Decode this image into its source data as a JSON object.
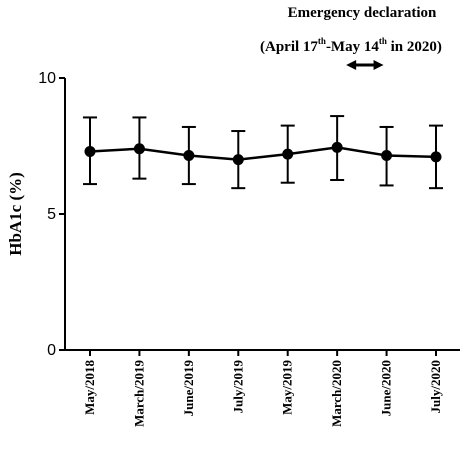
{
  "annotation": {
    "title": "Emergency declaration",
    "period_start": "April 17",
    "period_start_sup": "th",
    "period_sep": "-May 14",
    "period_end_sup": "th",
    "period_tail": " in 2020)",
    "open_paren": "(",
    "arrow_from": "March/2020",
    "arrow_to": "June/2020"
  },
  "chart_data": {
    "type": "line",
    "title": "",
    "xlabel": "",
    "ylabel": "HbA1c (%)",
    "ylim": [
      0,
      10
    ],
    "yticks": [
      0,
      5,
      10
    ],
    "grid": false,
    "categories": [
      "May/2018",
      "March/2019",
      "June/2019",
      "July/2019",
      "May/2019",
      "March/2020",
      "June/2020",
      "July/2020"
    ],
    "series": [
      {
        "values": [
          7.3,
          7.4,
          7.15,
          7.0,
          7.2,
          7.45,
          7.15,
          7.1
        ],
        "error_low": [
          6.1,
          6.3,
          6.1,
          5.95,
          6.15,
          6.25,
          6.05,
          5.95
        ],
        "error_high": [
          8.55,
          8.55,
          8.2,
          8.05,
          8.25,
          8.6,
          8.2,
          8.25
        ],
        "color": "#000000"
      }
    ]
  }
}
